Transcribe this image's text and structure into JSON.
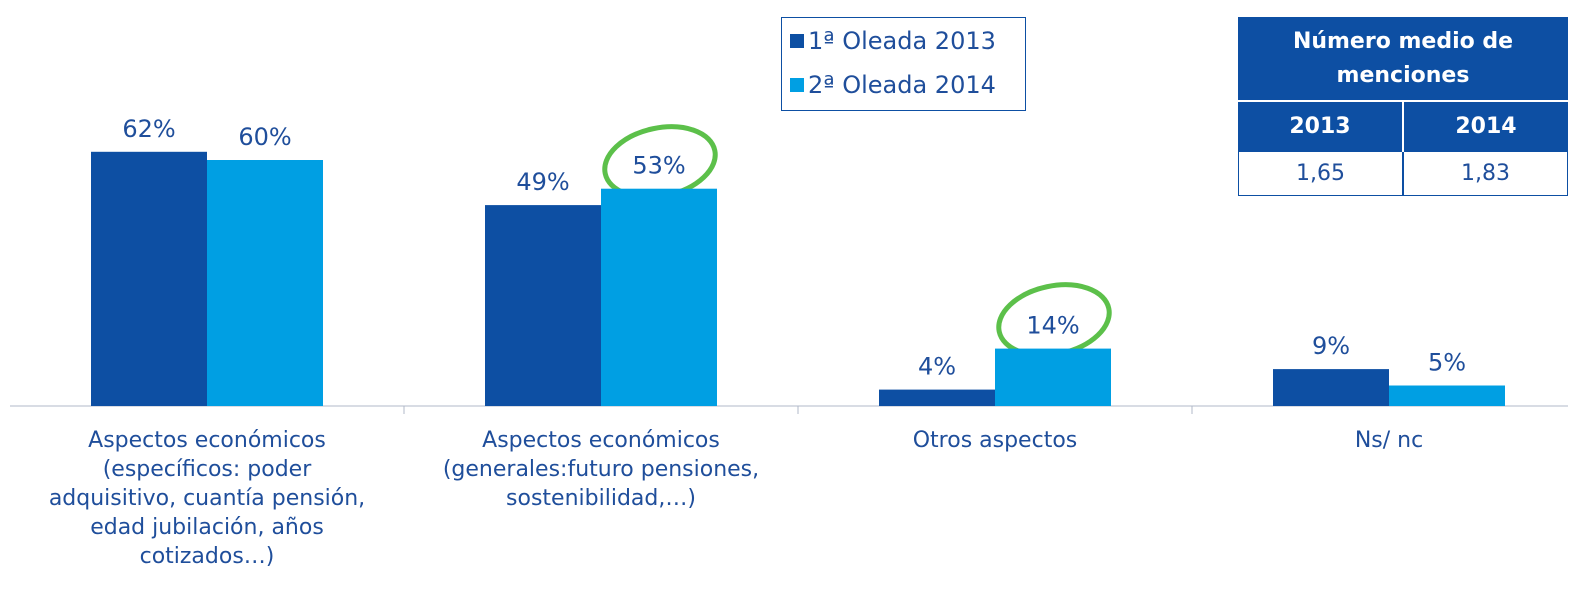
{
  "chart_data": {
    "type": "bar",
    "categories": [
      "Aspectos económicos\n(específicos: poder\nadquisitivo, cuantía pensión,\nedad jubilación, años\ncotizados…)",
      "Aspectos económicos\n(generales:futuro pensiones,\nsostenibilidad,…)",
      "Otros aspectos",
      "Ns/ nc"
    ],
    "series": [
      {
        "name": "1ª Oleada 2013",
        "color": "#0d4fa3",
        "values": [
          62,
          49,
          4,
          9
        ],
        "value_labels": [
          "62%",
          "49%",
          "4%",
          "9%"
        ]
      },
      {
        "name": "2ª Oleada 2014",
        "color": "#009fe3",
        "values": [
          60,
          53,
          14,
          5
        ],
        "value_labels": [
          "60%",
          "53%",
          "14%",
          "5%"
        ]
      }
    ]
  },
  "table": {
    "title": "Número  medio de\nmenciones",
    "columns": [
      "2013",
      "2014"
    ],
    "values": [
      "1,65",
      "1,83"
    ]
  }
}
